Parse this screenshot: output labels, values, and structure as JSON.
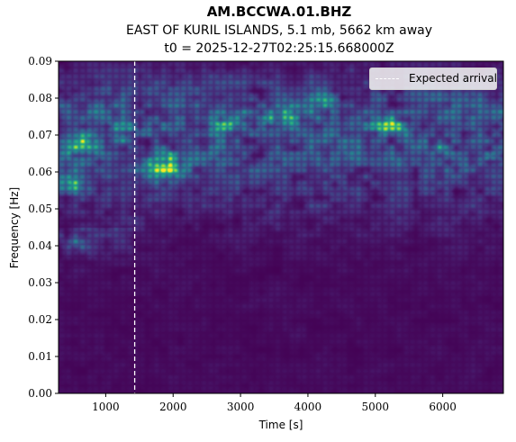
{
  "title": "AM.BCCWA.01.BHZ",
  "subtitle": "EAST OF KURIL ISLANDS, 5.1 mb, 5662 km away",
  "subtitle2": "t0 = 2025-12-27T02:25:15.668000Z",
  "chart_data": {
    "type": "heatmap",
    "xlabel": "Time [s]",
    "ylabel": "Frequency [Hz]",
    "xlim": [
      300,
      6900
    ],
    "ylim": [
      0.0,
      0.09
    ],
    "x_ticks": [
      "1000",
      "2000",
      "3000",
      "4000",
      "5000",
      "6000"
    ],
    "x_tick_values": [
      1000,
      2000,
      3000,
      4000,
      5000,
      6000
    ],
    "y_ticks": [
      "0.00",
      "0.01",
      "0.02",
      "0.03",
      "0.04",
      "0.05",
      "0.06",
      "0.07",
      "0.08",
      "0.09"
    ],
    "y_tick_values": [
      0.0,
      0.01,
      0.02,
      0.03,
      0.04,
      0.05,
      0.06,
      0.07,
      0.08,
      0.09
    ],
    "colormap": "viridis",
    "expected_arrival": 1430,
    "legend": "Expected arrival",
    "legend_position": "top-right",
    "hotspots": [
      {
        "t": 600,
        "f": 0.0675,
        "power": 1.0
      },
      {
        "t": 1250,
        "f": 0.0715,
        "power": 0.9
      },
      {
        "t": 420,
        "f": 0.057,
        "power": 0.8
      },
      {
        "t": 1950,
        "f": 0.061,
        "power": 0.85
      },
      {
        "t": 1900,
        "f": 0.064,
        "power": 0.75
      },
      {
        "t": 550,
        "f": 0.041,
        "power": 0.45
      },
      {
        "t": 2800,
        "f": 0.0735,
        "power": 0.55
      },
      {
        "t": 3600,
        "f": 0.0755,
        "power": 0.55
      },
      {
        "t": 4300,
        "f": 0.079,
        "power": 0.5
      },
      {
        "t": 5200,
        "f": 0.0725,
        "power": 0.55
      },
      {
        "t": 6000,
        "f": 0.0675,
        "power": 0.5
      },
      {
        "t": 6750,
        "f": 0.063,
        "power": 0.6
      }
    ],
    "band_energy": [
      {
        "f": 0.065,
        "width": 0.014,
        "power": 0.35
      },
      {
        "f": 0.078,
        "width": 0.008,
        "power": 0.2
      }
    ]
  }
}
